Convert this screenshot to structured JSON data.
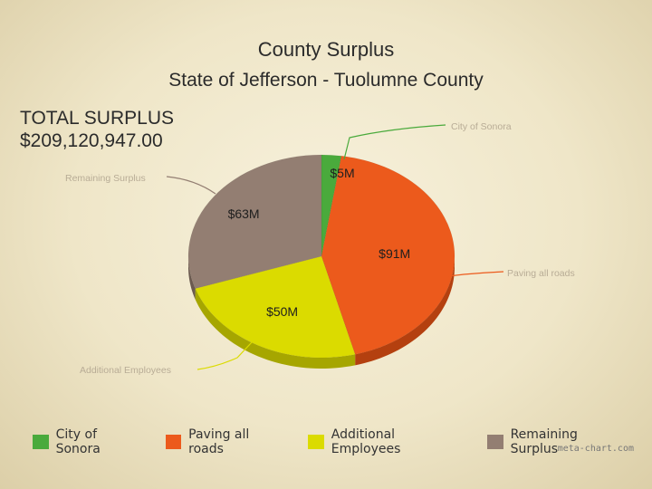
{
  "chart_data": {
    "type": "pie",
    "title": "County Surplus",
    "subtitle": "State of Jefferson - Tuolumne County",
    "total_label": "TOTAL SURPLUS",
    "total_value": "$209,120,947.00",
    "categories": [
      "City of Sonora",
      "Paving all roads",
      "Additional Employees",
      "Remaining Surplus"
    ],
    "values": [
      5,
      91,
      50,
      63
    ],
    "value_labels": [
      "$5M",
      "$91M",
      "$50M",
      "$63M"
    ],
    "colors": [
      "#4aaa3c",
      "#ec5a1c",
      "#dbdb00",
      "#937e72"
    ],
    "side_colors": [
      "#2f7f25",
      "#b4400f",
      "#a6a600",
      "#6b5a50"
    ],
    "legend_position": "bottom"
  },
  "credit": "meta-chart.com"
}
